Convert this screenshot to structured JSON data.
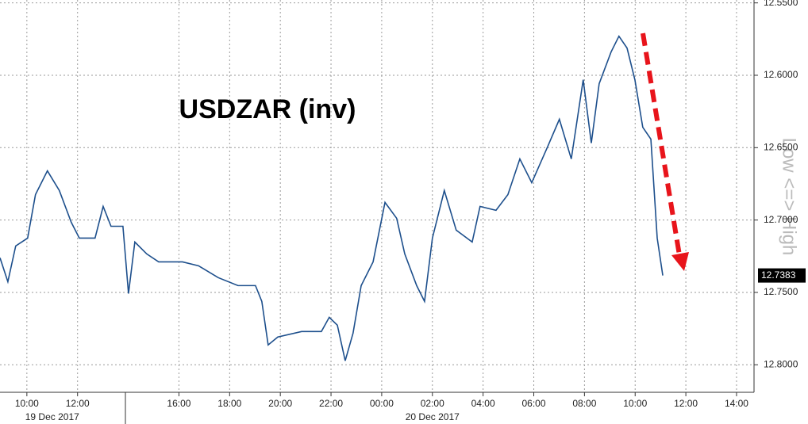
{
  "chart_data": {
    "type": "line",
    "title": "USDZAR (inv)",
    "y_axis_label": "Low <=> High",
    "x": [
      8.94,
      9.25,
      9.56,
      10.03,
      10.34,
      10.81,
      11.28,
      11.75,
      12.07,
      12.69,
      13.01,
      13.32,
      13.79,
      14.01,
      14.26,
      14.73,
      15.2,
      16.14,
      16.77,
      17.55,
      18.33,
      19.02,
      19.27,
      19.52,
      19.9,
      20.84,
      21.62,
      21.93,
      22.25,
      22.56,
      22.87,
      23.19,
      23.66,
      24.13,
      24.59,
      24.91,
      25.38,
      25.69,
      26.0,
      26.47,
      26.94,
      27.57,
      27.88,
      28.51,
      28.98,
      29.45,
      29.92,
      30.54,
      31.01,
      31.48,
      31.95,
      32.27,
      32.58,
      33.05,
      33.36,
      33.68,
      33.99,
      34.3,
      34.62,
      34.87,
      35.09
    ],
    "series": [
      {
        "color": "#1d4f8c",
        "values": [
          12.7261,
          12.7426,
          12.7179,
          12.7125,
          12.6824,
          12.666,
          12.6796,
          12.7015,
          12.7125,
          12.7125,
          12.6906,
          12.7043,
          12.7043,
          12.7508,
          12.7152,
          12.7234,
          12.7289,
          12.7289,
          12.7316,
          12.7398,
          12.7453,
          12.7453,
          12.7562,
          12.7863,
          12.7808,
          12.777,
          12.777,
          12.7672,
          12.7726,
          12.7972,
          12.7781,
          12.7453,
          12.7289,
          12.6878,
          12.6988,
          12.7234,
          12.7453,
          12.7562,
          12.7125,
          12.6796,
          12.707,
          12.7152,
          12.6906,
          12.6933,
          12.6824,
          12.6578,
          12.6742,
          12.6496,
          12.6304,
          12.6578,
          12.6031,
          12.6468,
          12.6058,
          12.5839,
          12.573,
          12.5812,
          12.6031,
          12.6359,
          12.6441,
          12.7125,
          12.7383
        ],
        "value_labels": [
          null,
          null,
          null,
          null,
          null,
          null,
          null,
          null,
          null,
          null,
          null,
          null,
          null,
          null,
          null,
          null,
          null,
          null,
          null,
          null,
          null,
          null,
          null,
          null,
          null,
          null,
          null,
          null,
          null,
          null,
          null,
          null,
          null,
          null,
          null,
          null,
          null,
          null,
          null,
          null,
          null,
          null,
          null,
          null,
          null,
          null,
          null,
          null,
          null,
          null,
          null,
          null,
          null,
          null,
          null,
          null,
          null,
          null,
          null,
          null,
          "12.7383"
        ]
      }
    ],
    "xlim": [
      8.94,
      38.69
    ],
    "xticks": [
      {
        "value": 10,
        "label": "10:00"
      },
      {
        "value": 12,
        "label": "12:00"
      },
      {
        "value": 16,
        "label": "16:00"
      },
      {
        "value": 18,
        "label": "18:00"
      },
      {
        "value": 20,
        "label": "20:00"
      },
      {
        "value": 22,
        "label": "22:00"
      },
      {
        "value": 24,
        "label": "00:00"
      },
      {
        "value": 26,
        "label": "02:00"
      },
      {
        "value": 28,
        "label": "04:00"
      },
      {
        "value": 30,
        "label": "06:00"
      },
      {
        "value": 32,
        "label": "08:00"
      },
      {
        "value": 34,
        "label": "10:00"
      },
      {
        "value": 36,
        "label": "12:00"
      },
      {
        "value": 38,
        "label": "14:00"
      }
    ],
    "date_labels": [
      {
        "value": 11,
        "label": "19 Dec 2017"
      },
      {
        "value": 26,
        "label": "20 Dec 2017"
      }
    ],
    "ylim": [
      12.548,
      12.819
    ],
    "inverted": true,
    "yticks": [
      {
        "value": 12.55,
        "label": "12.5500"
      },
      {
        "value": 12.6,
        "label": "12.6000"
      },
      {
        "value": 12.65,
        "label": "12.6500"
      },
      {
        "value": 12.7,
        "label": "12.7000"
      },
      {
        "value": 12.75,
        "label": "12.7500"
      },
      {
        "value": 12.8,
        "label": "12.8000"
      }
    ],
    "grid": true
  }
}
